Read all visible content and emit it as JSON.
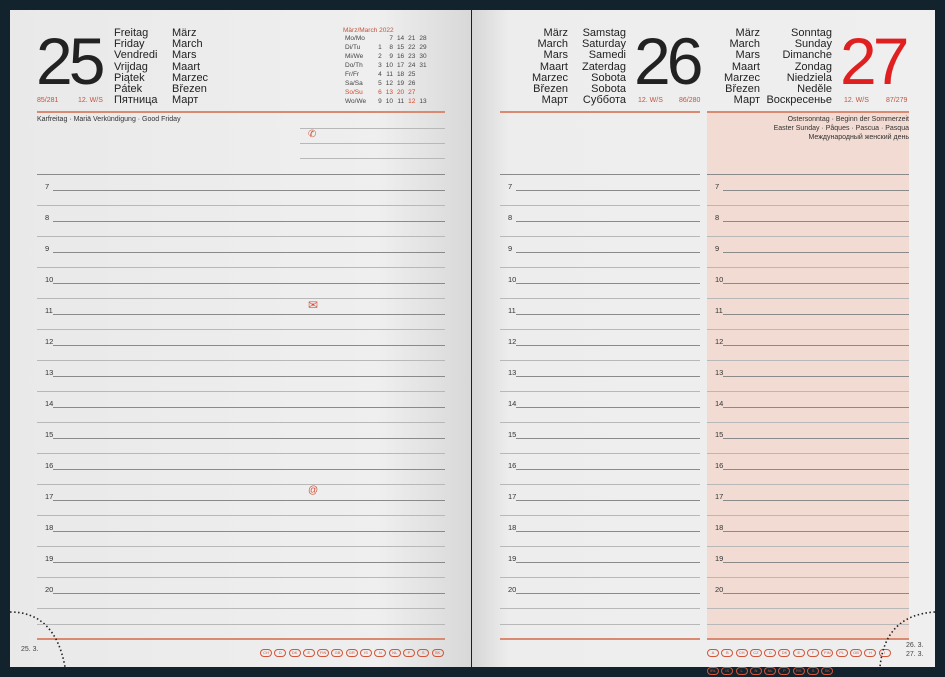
{
  "left_page": {
    "day_number": "25",
    "weekday_names": [
      "Freitag",
      "Friday",
      "Vendredi",
      "Vrijdag",
      "Piątek",
      "Pátek",
      "Пятница"
    ],
    "month_names": [
      "März",
      "March",
      "Mars",
      "Maart",
      "Marzec",
      "Březen",
      "Март"
    ],
    "day_of_year": "85/281",
    "week": "12. W/S",
    "holiday": "Karfreitag · Mariä Verkündigung · Good Friday",
    "mini_calendar": {
      "title": "März/March 2022",
      "rows": [
        {
          "label": "Mo/Mo",
          "days": [
            "",
            "7",
            "14",
            "21",
            "28"
          ]
        },
        {
          "label": "Di/Tu",
          "days": [
            "1",
            "8",
            "15",
            "22",
            "29"
          ]
        },
        {
          "label": "Mi/We",
          "days": [
            "2",
            "9",
            "16",
            "23",
            "30"
          ]
        },
        {
          "label": "Do/Th",
          "days": [
            "3",
            "10",
            "17",
            "24",
            "31"
          ]
        },
        {
          "label": "Fr/Fr",
          "days": [
            "4",
            "11",
            "18",
            "25",
            ""
          ]
        },
        {
          "label": "Sa/Sa",
          "days": [
            "5",
            "12",
            "19",
            "26",
            ""
          ]
        },
        {
          "label": "So/Su",
          "days": [
            "6",
            "13",
            "20",
            "27",
            ""
          ]
        },
        {
          "label": "Wo/We",
          "days": [
            "9",
            "10",
            "11",
            "12",
            "13"
          ]
        }
      ]
    },
    "footer_date": "25. 3.",
    "country_codes": [
      "CH",
      "D",
      "DK",
      "E",
      "FIN",
      "GB",
      "GR",
      "IS",
      "N",
      "NL",
      "P",
      "S",
      "SK"
    ]
  },
  "right_page": {
    "day1": {
      "day_number": "26",
      "month_names": [
        "März",
        "March",
        "Mars",
        "Maart",
        "Marzec",
        "Březen",
        "Март"
      ],
      "weekday_names": [
        "Samstag",
        "Saturday",
        "Samedi",
        "Zaterdag",
        "Sobota",
        "Sobota",
        "Суббота"
      ],
      "week": "12. W/S",
      "day_of_year": "86/280"
    },
    "day2": {
      "day_number": "27",
      "month_names": [
        "März",
        "March",
        "Mars",
        "Maart",
        "Marzec",
        "Březen",
        "Март"
      ],
      "weekday_names": [
        "Sonntag",
        "Sunday",
        "Dimanche",
        "Zondag",
        "Niedziela",
        "Neděle",
        "Воскресенье"
      ],
      "week": "12. W/S",
      "day_of_year": "87/279",
      "holidays": [
        "Ostersonntag · Beginn der Sommerzeit",
        "Easter Sunday · Pâques · Pascua · Pasqua",
        "Международный женский день"
      ]
    },
    "footer_dates": [
      "26. 3.",
      "27. 3."
    ],
    "country_codes_row1": [
      "A",
      "B",
      "CH",
      "CZ",
      "D",
      "DK",
      "E",
      "F",
      "FIN",
      "PL",
      "GB",
      "H",
      "I"
    ],
    "country_codes_row2": [
      "IRL",
      "IS",
      "L",
      "N",
      "NL",
      "P",
      "RS",
      "S",
      "SK"
    ]
  },
  "hours": [
    "7",
    "8",
    "9",
    "10",
    "11",
    "12",
    "13",
    "14",
    "15",
    "16",
    "17",
    "18",
    "19",
    "20"
  ],
  "icons": {
    "phone": "phone-icon",
    "mail": "envelope-icon",
    "at": "at-icon"
  },
  "colors": {
    "accent": "#d2452a",
    "sunday": "#e02020",
    "highlight": "#f2dbd2",
    "cover": "#13232d"
  }
}
